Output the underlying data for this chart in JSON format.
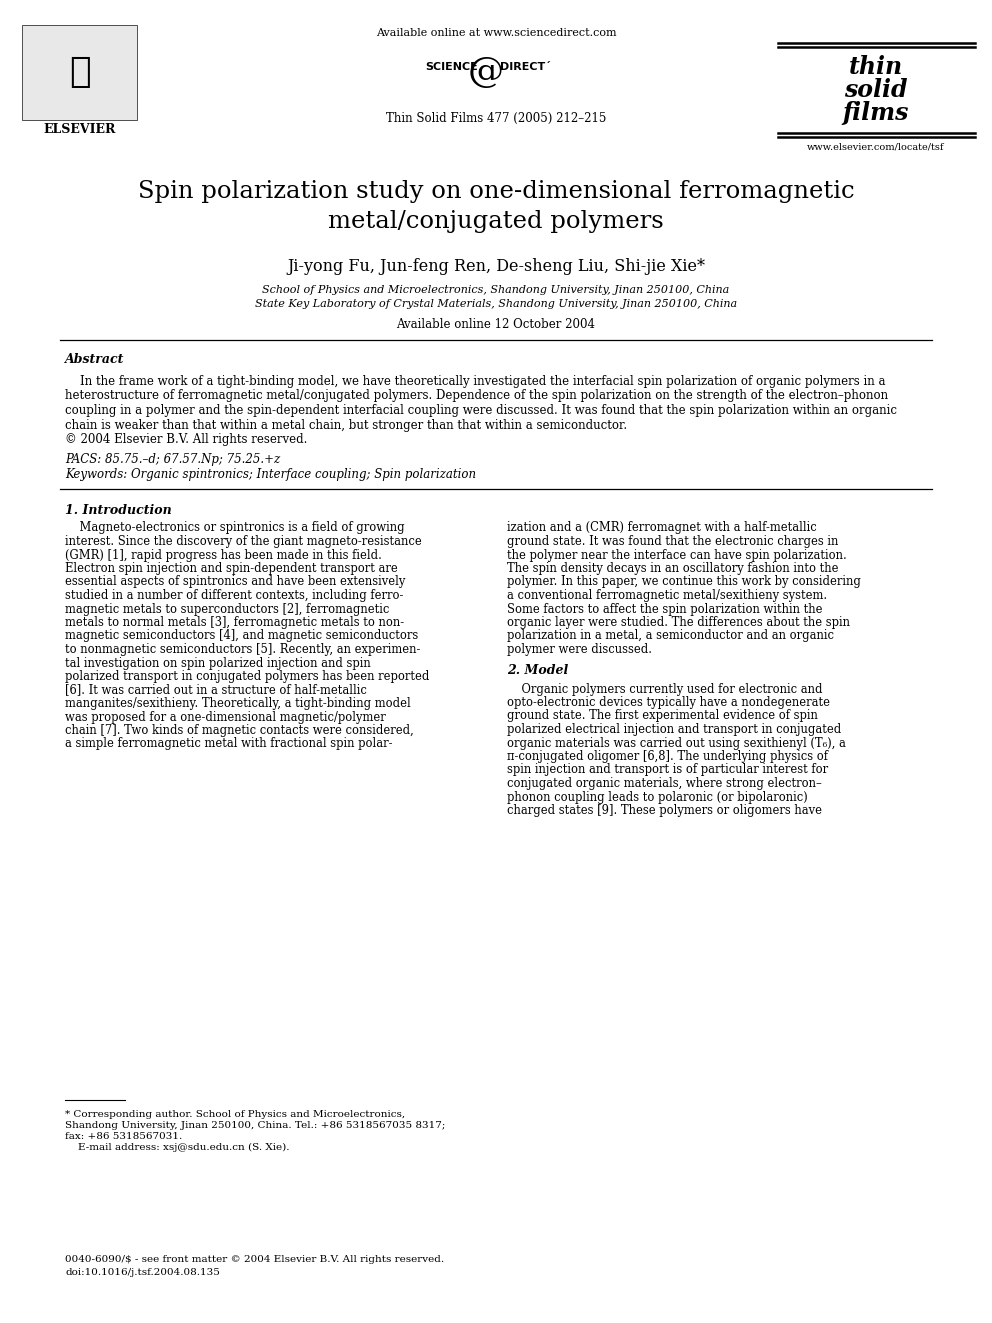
{
  "bg_color": "#ffffff",
  "header_online": "Available online at www.sciencedirect.com",
  "journal_info": "Thin Solid Films 477 (2005) 212–215",
  "elsevier_label": "ELSEVIER",
  "website": "www.elsevier.com/locate/tsf",
  "title_line1": "Spin polarization study on one-dimensional ferromagnetic",
  "title_line2": "metal/conjugated polymers",
  "authors": "Ji-yong Fu, Jun-feng Ren, De-sheng Liu, Shi-jie Xie*",
  "affil1": "School of Physics and Microelectronics, Shandong University, Jinan 250100, China",
  "affil2": "State Key Laboratory of Crystal Materials, Shandong University, Jinan 250100, China",
  "available_date": "Available online 12 October 2004",
  "abstract_label": "Abstract",
  "abs_lines": [
    "    In the frame work of a tight-binding model, we have theoretically investigated the interfacial spin polarization of organic polymers in a",
    "heterostructure of ferromagnetic metal/conjugated polymers. Dependence of the spin polarization on the strength of the electron–phonon",
    "coupling in a polymer and the spin-dependent interfacial coupling were discussed. It was found that the spin polarization within an organic",
    "chain is weaker than that within a metal chain, but stronger than that within a semiconductor."
  ],
  "copyright": "© 2004 Elsevier B.V. All rights reserved.",
  "pacs": "PACS: 85.75.–d; 67.57.Np; 75.25.+z",
  "keywords": "Keywords: Organic spintronics; Interface coupling; Spin polarization",
  "sec1_title": "1. Introduction",
  "sec1_col1": [
    "    Magneto-electronics or spintronics is a field of growing",
    "interest. Since the discovery of the giant magneto-resistance",
    "(GMR) [1], rapid progress has been made in this field.",
    "Electron spin injection and spin-dependent transport are",
    "essential aspects of spintronics and have been extensively",
    "studied in a number of different contexts, including ferro-",
    "magnetic metals to superconductors [2], ferromagnetic",
    "metals to normal metals [3], ferromagnetic metals to non-",
    "magnetic semiconductors [4], and magnetic semiconductors",
    "to nonmagnetic semiconductors [5]. Recently, an experimen-",
    "tal investigation on spin polarized injection and spin",
    "polarized transport in conjugated polymers has been reported",
    "[6]. It was carried out in a structure of half-metallic",
    "manganites/sexithieny. Theoretically, a tight-binding model",
    "was proposed for a one-dimensional magnetic/polymer",
    "chain [7]. Two kinds of magnetic contacts were considered,",
    "a simple ferromagnetic metal with fractional spin polar-"
  ],
  "sec1_col2": [
    "ization and a (CMR) ferromagnet with a half-metallic",
    "ground state. It was found that the electronic charges in",
    "the polymer near the interface can have spin polarization.",
    "The spin density decays in an oscillatory fashion into the",
    "polymer. In this paper, we continue this work by considering",
    "a conventional ferromagnetic metal/sexithieny system.",
    "Some factors to affect the spin polarization within the",
    "organic layer were studied. The differences about the spin",
    "polarization in a metal, a semiconductor and an organic",
    "polymer were discussed."
  ],
  "sec2_title": "2. Model",
  "sec2_col2": [
    "    Organic polymers currently used for electronic and",
    "opto-electronic devices typically have a nondegenerate",
    "ground state. The first experimental evidence of spin",
    "polarized electrical injection and transport in conjugated",
    "organic materials was carried out using sexithienyl (T₆), a",
    "π-conjugated oligomer [6,8]. The underlying physics of",
    "spin injection and transport is of particular interest for",
    "conjugated organic materials, where strong electron–",
    "phonon coupling leads to polaronic (or bipolaronic)",
    "charged states [9]. These polymers or oligomers have"
  ],
  "footnote": [
    "* Corresponding author. School of Physics and Microelectronics,",
    "Shandong University, Jinan 250100, China. Tel.: +86 5318567035 8317;",
    "fax: +86 5318567031.",
    "    E-mail address: xsj@sdu.edu.cn (S. Xie)."
  ],
  "footer1": "0040-6090/$ - see front matter © 2004 Elsevier B.V. All rights reserved.",
  "footer2": "doi:10.1016/j.tsf.2004.08.135"
}
